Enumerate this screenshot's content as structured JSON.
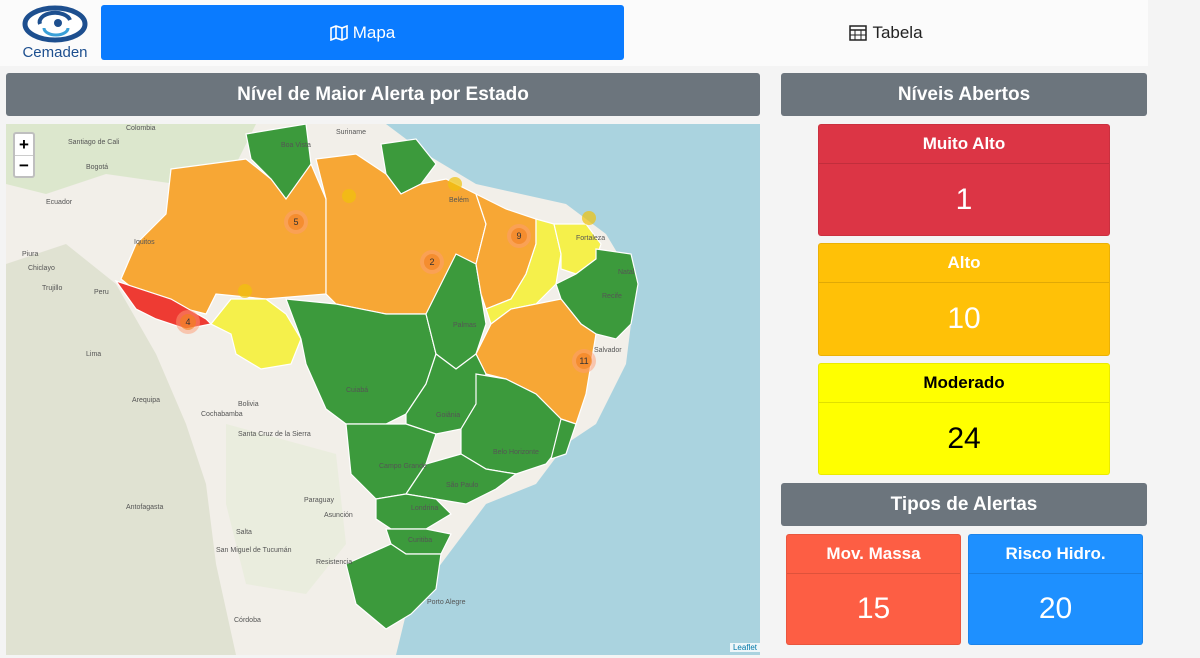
{
  "logo": {
    "text": "Cemaden"
  },
  "tabs": {
    "mapa": "Mapa",
    "tabela": "Tabela"
  },
  "panels": {
    "map_title": "Nível de Maior Alerta por Estado",
    "levels_title": "Níveis Abertos",
    "types_title": "Tipos de Alertas"
  },
  "levels": {
    "muito_alto": {
      "label": "Muito Alto",
      "value": "1",
      "color": "#dc3545"
    },
    "alto": {
      "label": "Alto",
      "value": "10",
      "color": "#ffc107"
    },
    "moderado": {
      "label": "Moderado",
      "value": "24",
      "color": "#ffff00"
    }
  },
  "types": {
    "mov_massa": {
      "label": "Mov. Massa",
      "value": "15",
      "color": "#fd5e44"
    },
    "risco_hidro": {
      "label": "Risco Hidro.",
      "value": "20",
      "color": "#1e90ff"
    }
  },
  "map": {
    "zoom_in": "+",
    "zoom_out": "−",
    "attribution": "Leaflet",
    "clusters": [
      "5",
      "2",
      "9",
      "4",
      "11"
    ],
    "labels": {
      "colombia": "Colombia",
      "santiago": "Santiago de Cali",
      "bogota": "Bogotá",
      "ecuador": "Ecuador",
      "iquitos": "Iquitos",
      "piura": "Piura",
      "chiclayo": "Chiclayo",
      "trujillo": "Trujillo",
      "peru": "Peru",
      "lima": "Lima",
      "arequipa": "Arequipa",
      "bolivia": "Bolivia",
      "cochabamba": "Cochabamba",
      "santa_cruz": "Santa Cruz de la Sierra",
      "paraguay": "Paraguay",
      "asuncion": "Asunción",
      "antofagasta": "Antofagasta",
      "salta": "Salta",
      "tucuman": "San Miguel de Tucumán",
      "cordoba": "Córdoba",
      "resistencia": "Resistencia",
      "suriname": "Suriname",
      "boa_vista": "Boa Vista",
      "belem": "Belém",
      "palmas": "Palmas",
      "cuiaba": "Cuiabá",
      "goiania": "Goiânia",
      "campo_grande": "Campo Grande",
      "belo_horizonte": "Belo Horizonte",
      "londrina": "Londrina",
      "porto_alegre": "Porto Alegre",
      "curitiba": "Curitiba",
      "salvador": "Salvador",
      "fortaleza": "Fortaleza",
      "recife": "Recife",
      "natal": "Natal",
      "sao_paulo": "São Paulo"
    }
  },
  "colors": {
    "muito_alto": "#ee3b33",
    "alto": "#f7a735",
    "moderado": "#f5f04b",
    "normal": "#3c9a3c",
    "ocean": "#aad3df",
    "land": "#f2efe9"
  }
}
